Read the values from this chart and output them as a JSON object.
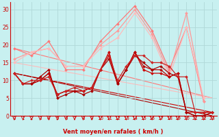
{
  "bg_color": "#c8f0f0",
  "grid_color": "#b0d8d8",
  "xlabel": "Vent moyen/en rafales ( km/h )",
  "xlim": [
    -0.5,
    23.5
  ],
  "ylim": [
    0,
    32
  ],
  "yticks": [
    0,
    5,
    10,
    15,
    20,
    25,
    30
  ],
  "xticks": [
    0,
    1,
    2,
    3,
    4,
    5,
    6,
    7,
    8,
    9,
    10,
    11,
    12,
    13,
    14,
    15,
    16,
    17,
    18,
    19,
    20,
    21,
    22,
    23
  ],
  "series": [
    {
      "x": [
        0,
        1,
        2,
        3,
        4,
        5,
        6,
        7,
        8,
        9,
        10,
        11,
        12,
        13,
        14,
        15,
        16,
        17,
        18,
        19,
        20,
        21,
        22,
        23
      ],
      "y": [
        12,
        9,
        9,
        10,
        12,
        6,
        7,
        7,
        7,
        8,
        13,
        18,
        9,
        13,
        18,
        13,
        12,
        12,
        11,
        12,
        1,
        1,
        1,
        1
      ],
      "color": "#cc0000",
      "marker": "D",
      "markersize": 2.0,
      "linewidth": 0.9,
      "zorder": 4
    },
    {
      "x": [
        0,
        1,
        2,
        3,
        4,
        5,
        6,
        7,
        8,
        9,
        10,
        11,
        12,
        13,
        14,
        15,
        16,
        17,
        18,
        19,
        20,
        21,
        22,
        23
      ],
      "y": [
        12,
        9,
        9,
        10,
        12,
        6,
        7,
        7,
        7,
        8,
        13,
        17,
        9,
        13,
        18,
        14,
        13,
        13,
        11,
        12,
        1,
        0,
        0,
        1
      ],
      "color": "#bb0000",
      "marker": "D",
      "markersize": 2.0,
      "linewidth": 0.9,
      "zorder": 4
    },
    {
      "x": [
        0,
        1,
        2,
        3,
        4,
        5,
        6,
        7,
        8,
        9,
        10,
        11,
        12,
        13,
        14,
        15,
        16,
        17,
        18,
        19,
        20,
        21,
        22,
        23
      ],
      "y": [
        12,
        9,
        9,
        11,
        13,
        5,
        6,
        7,
        6,
        7,
        13,
        16,
        9,
        13,
        17,
        15,
        13,
        14,
        12,
        11,
        1,
        0,
        0,
        1
      ],
      "color": "#aa0000",
      "marker": "D",
      "markersize": 2.0,
      "linewidth": 0.9,
      "zorder": 4
    },
    {
      "x": [
        0,
        1,
        2,
        3,
        4,
        5,
        6,
        7,
        8,
        9,
        10,
        11,
        12,
        13,
        14,
        15,
        16,
        17,
        18,
        19,
        20,
        21,
        22,
        23
      ],
      "y": [
        12,
        9,
        10,
        10,
        11,
        6,
        7,
        8,
        7,
        8,
        13,
        17,
        10,
        14,
        17,
        17,
        15,
        15,
        14,
        11,
        11,
        1,
        1,
        1
      ],
      "color": "#cc2222",
      "marker": "D",
      "markersize": 2.0,
      "linewidth": 0.9,
      "zorder": 4
    },
    {
      "x": [
        0,
        2,
        4,
        6,
        8,
        10,
        12,
        14,
        16,
        18,
        20,
        22
      ],
      "y": [
        19,
        17,
        21,
        13,
        13,
        21,
        26,
        31,
        24,
        13,
        25,
        4
      ],
      "color": "#ff7777",
      "marker": "D",
      "markersize": 2.0,
      "linewidth": 0.9,
      "zorder": 2
    },
    {
      "x": [
        0,
        2,
        4,
        6,
        8,
        10,
        12,
        14,
        16,
        18,
        20,
        22
      ],
      "y": [
        16,
        18,
        19,
        14,
        14,
        20,
        24,
        30,
        23,
        12,
        29,
        4
      ],
      "color": "#ff9999",
      "marker": "D",
      "markersize": 2.0,
      "linewidth": 0.9,
      "zorder": 2
    },
    {
      "x": [
        0,
        2,
        4,
        6,
        8,
        10,
        12,
        14,
        16,
        18,
        20,
        22
      ],
      "y": [
        15,
        18,
        19,
        14,
        14,
        19,
        22,
        29,
        22,
        11,
        25,
        5
      ],
      "color": "#ffbbbb",
      "marker": "D",
      "markersize": 2.0,
      "linewidth": 0.9,
      "zorder": 2
    },
    {
      "x": [
        0,
        23
      ],
      "y": [
        12,
        1
      ],
      "color": "#cc0000",
      "marker": null,
      "linewidth": 0.8,
      "zorder": 1
    },
    {
      "x": [
        0,
        23
      ],
      "y": [
        12,
        0
      ],
      "color": "#aa0000",
      "marker": null,
      "linewidth": 0.8,
      "zorder": 1
    },
    {
      "x": [
        0,
        23
      ],
      "y": [
        19,
        5
      ],
      "color": "#ff7777",
      "marker": null,
      "linewidth": 0.8,
      "zorder": 1
    },
    {
      "x": [
        0,
        23
      ],
      "y": [
        15,
        5
      ],
      "color": "#ffbbbb",
      "marker": null,
      "linewidth": 0.8,
      "zorder": 1
    }
  ],
  "arrow_color": "#cc0000",
  "label_color": "#cc0000"
}
